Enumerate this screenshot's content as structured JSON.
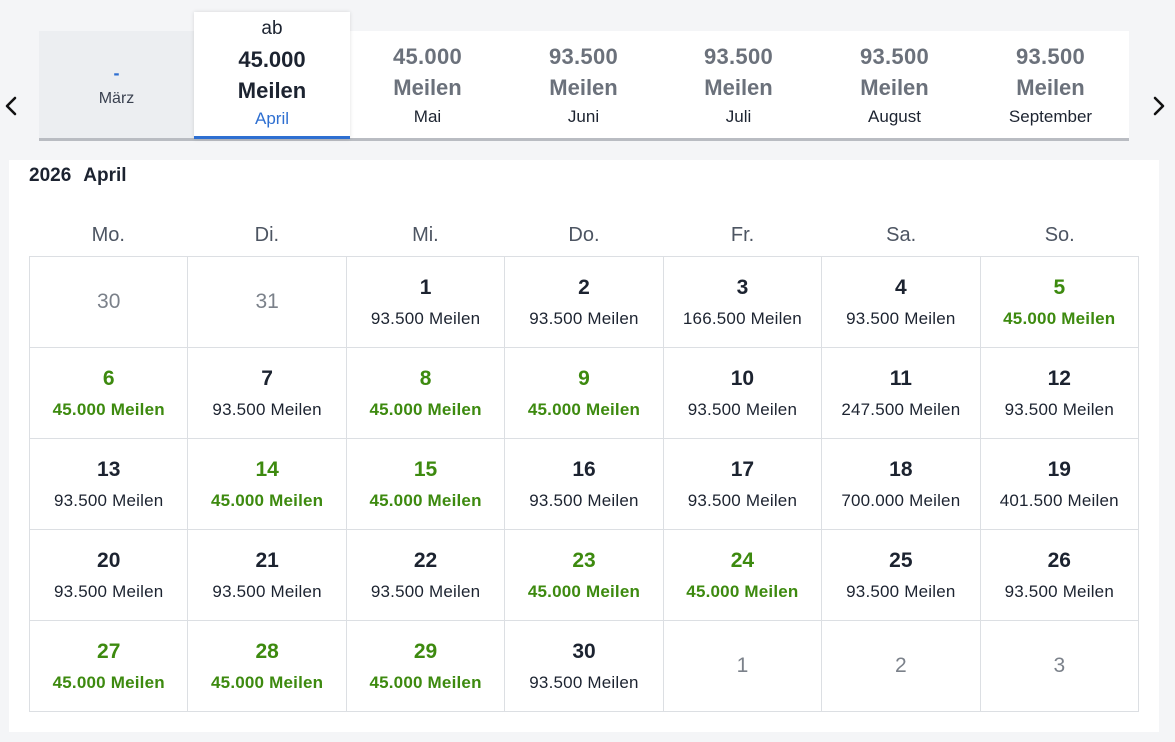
{
  "nav": {
    "prev_icon": "chevron-left-icon",
    "next_icon": "chevron-right-icon"
  },
  "months": [
    {
      "price": "-",
      "unit": "",
      "name": "März",
      "state": "disabled"
    },
    {
      "prefix": "ab",
      "price": "45.000",
      "unit": "Meilen",
      "name": "April",
      "state": "selected"
    },
    {
      "price": "45.000",
      "unit": "Meilen",
      "name": "Mai"
    },
    {
      "price": "93.500",
      "unit": "Meilen",
      "name": "Juni"
    },
    {
      "price": "93.500",
      "unit": "Meilen",
      "name": "Juli"
    },
    {
      "price": "93.500",
      "unit": "Meilen",
      "name": "August"
    },
    {
      "price": "93.500",
      "unit": "Meilen",
      "name": "September"
    }
  ],
  "calendar": {
    "year": "2026",
    "month": "April",
    "weekdays": [
      "Mo.",
      "Di.",
      "Mi.",
      "Do.",
      "Fr.",
      "Sa.",
      "So."
    ],
    "days": [
      {
        "day": "30",
        "outside": true
      },
      {
        "day": "31",
        "outside": true
      },
      {
        "day": "1",
        "miles": "93.500  Meilen"
      },
      {
        "day": "2",
        "miles": "93.500  Meilen"
      },
      {
        "day": "3",
        "miles": "166.500  Meilen"
      },
      {
        "day": "4",
        "miles": "93.500  Meilen"
      },
      {
        "day": "5",
        "miles": "45.000  Meilen",
        "cheap": true
      },
      {
        "day": "6",
        "miles": "45.000  Meilen",
        "cheap": true
      },
      {
        "day": "7",
        "miles": "93.500  Meilen"
      },
      {
        "day": "8",
        "miles": "45.000  Meilen",
        "cheap": true
      },
      {
        "day": "9",
        "miles": "45.000  Meilen",
        "cheap": true
      },
      {
        "day": "10",
        "miles": "93.500  Meilen"
      },
      {
        "day": "11",
        "miles": "247.500  Meilen"
      },
      {
        "day": "12",
        "miles": "93.500  Meilen"
      },
      {
        "day": "13",
        "miles": "93.500  Meilen"
      },
      {
        "day": "14",
        "miles": "45.000  Meilen",
        "cheap": true
      },
      {
        "day": "15",
        "miles": "45.000  Meilen",
        "cheap": true
      },
      {
        "day": "16",
        "miles": "93.500  Meilen"
      },
      {
        "day": "17",
        "miles": "93.500  Meilen"
      },
      {
        "day": "18",
        "miles": "700.000  Meilen"
      },
      {
        "day": "19",
        "miles": "401.500  Meilen"
      },
      {
        "day": "20",
        "miles": "93.500  Meilen"
      },
      {
        "day": "21",
        "miles": "93.500  Meilen"
      },
      {
        "day": "22",
        "miles": "93.500  Meilen"
      },
      {
        "day": "23",
        "miles": "45.000  Meilen",
        "cheap": true
      },
      {
        "day": "24",
        "miles": "45.000  Meilen",
        "cheap": true
      },
      {
        "day": "25",
        "miles": "93.500  Meilen"
      },
      {
        "day": "26",
        "miles": "93.500  Meilen"
      },
      {
        "day": "27",
        "miles": "45.000  Meilen",
        "cheap": true
      },
      {
        "day": "28",
        "miles": "45.000  Meilen",
        "cheap": true
      },
      {
        "day": "29",
        "miles": "45.000  Meilen",
        "cheap": true
      },
      {
        "day": "30",
        "miles": "93.500  Meilen"
      },
      {
        "day": "1",
        "outside": true
      },
      {
        "day": "2",
        "outside": true
      },
      {
        "day": "3",
        "outside": true
      }
    ]
  },
  "colors": {
    "accent": "#2e6fd1",
    "cheap": "#3d8a0f",
    "text": "#1c2330"
  }
}
